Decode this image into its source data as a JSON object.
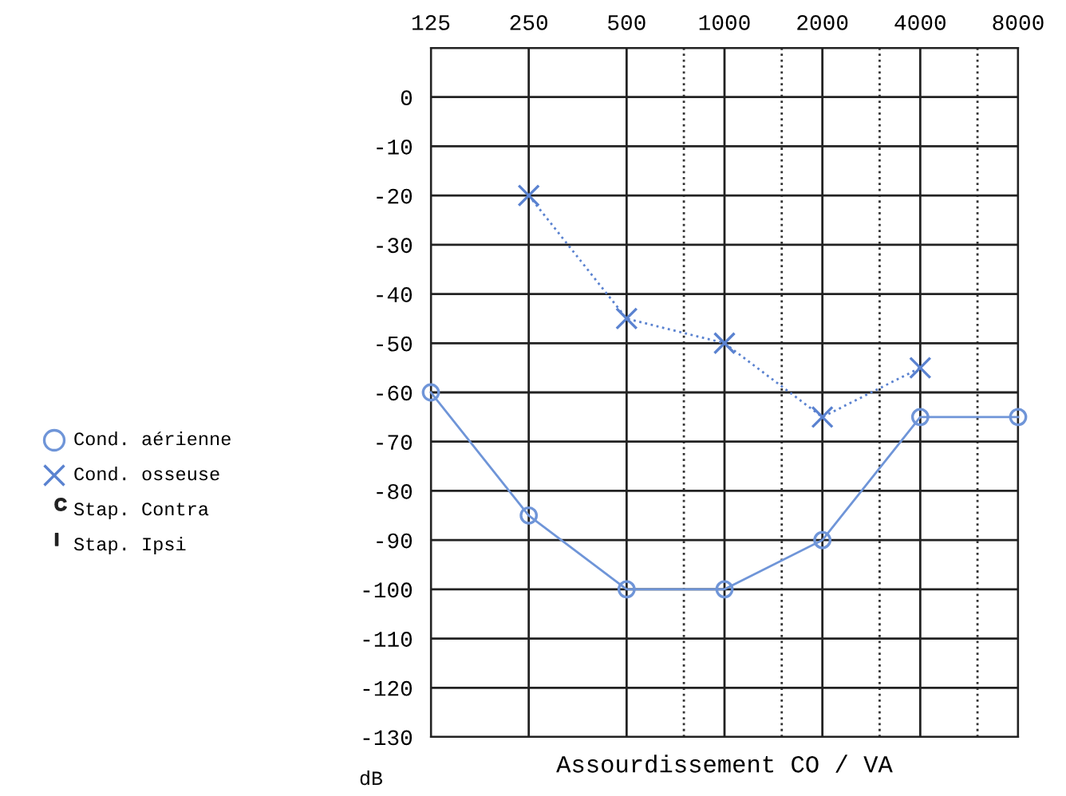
{
  "chart_data": {
    "type": "line",
    "xlabel": "Assourdissement CO / VA",
    "ylabel": "dB",
    "x": [
      125,
      250,
      500,
      1000,
      2000,
      4000,
      8000
    ],
    "log": "x",
    "xlim": [
      125,
      8000
    ],
    "xticks": [
      125,
      250,
      500,
      1000,
      2000,
      4000,
      8000
    ],
    "ylim": [
      -130,
      10
    ],
    "yticks": [
      {
        "value": 10,
        "label": null
      },
      0,
      -10,
      -20,
      -30,
      -40,
      -50,
      -60,
      -70,
      -80,
      -90,
      -100,
      -110,
      -120,
      -130
    ],
    "grid": true,
    "legend": "left",
    "ref_lines": [
      {
        "axis": "x",
        "value": 750,
        "label": null,
        "color": "#333333",
        "line_style": "dotted"
      },
      {
        "axis": "x",
        "value": 1500,
        "label": null,
        "color": "#333333",
        "line_style": "dotted"
      },
      {
        "axis": "x",
        "value": 3000,
        "label": null,
        "color": "#333333",
        "line_style": "dotted"
      },
      {
        "axis": "x",
        "value": 6000,
        "label": null,
        "color": "#333333",
        "line_style": "dotted"
      }
    ],
    "series": [
      {
        "name": "Cond. aérienne",
        "color": "#6f95d8",
        "marker": "circle",
        "line_style": "solid",
        "values": [
          -60,
          -85,
          -100,
          -100,
          -90,
          -65,
          -65
        ]
      },
      {
        "name": "Cond. osseuse",
        "color": "#5a82d0",
        "marker": "cross",
        "line_style": "dotted",
        "x": [
          250,
          500,
          1000,
          2000,
          4000
        ],
        "values": [
          -20,
          -45,
          -50,
          -65,
          -55
        ]
      },
      {
        "name": "Stap. Contra",
        "color": "#222222",
        "marker": "C",
        "values": [
          null,
          null,
          null,
          null,
          null,
          null,
          null
        ]
      },
      {
        "name": "Stap. Ipsi",
        "color": "#222222",
        "marker": "I",
        "values": [
          null,
          null,
          null,
          null,
          null,
          null,
          null
        ]
      }
    ]
  }
}
